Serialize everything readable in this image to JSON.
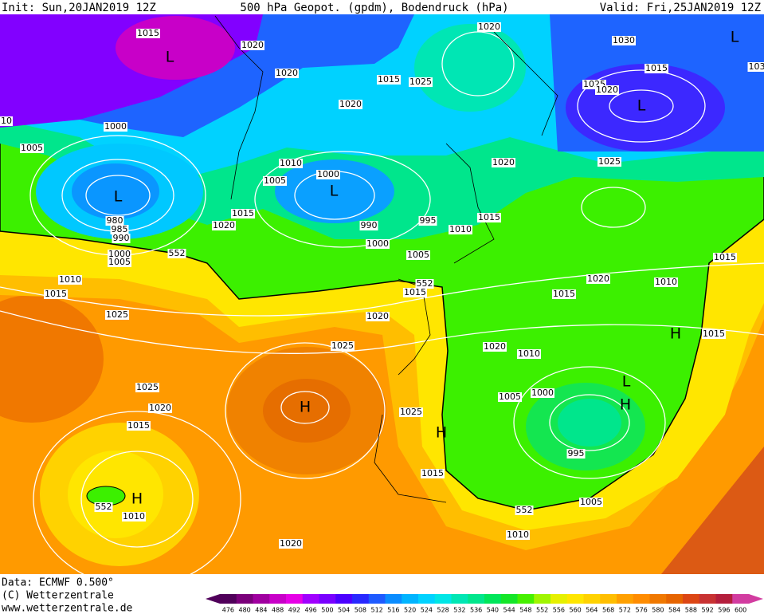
{
  "header": {
    "init": "Init: Sun,20JAN2019 12Z",
    "title": "500 hPa Geopot. (gpdm), Bodendruck (hPa)",
    "valid": "Valid: Fri,25JAN2019 12Z"
  },
  "footer": {
    "data": "Data: ECMWF  0.500°",
    "copyright": "(C) Wetterzentrale",
    "url": "www.wetterzentrale.de"
  },
  "colorbar": {
    "ticks": [
      476,
      480,
      484,
      488,
      492,
      496,
      500,
      504,
      508,
      512,
      516,
      520,
      524,
      528,
      532,
      536,
      540,
      544,
      548,
      552,
      556,
      560,
      564,
      568,
      572,
      576,
      580,
      584,
      588,
      592,
      596,
      600
    ],
    "colors": [
      "#50005a",
      "#7a007a",
      "#a000a0",
      "#c800c8",
      "#e600e6",
      "#a000ff",
      "#7800ff",
      "#4b00ff",
      "#2828ff",
      "#1e5aff",
      "#0a8cff",
      "#00b4ff",
      "#00d2ff",
      "#00e6e6",
      "#00e6b4",
      "#00e68c",
      "#00e65a",
      "#14e628",
      "#46f000",
      "#a0f500",
      "#e6f000",
      "#ffe600",
      "#ffd200",
      "#ffbe00",
      "#ffa000",
      "#ff8c00",
      "#f07800",
      "#e66400",
      "#dc4614",
      "#c83232",
      "#b41e3c",
      "#d23ca0"
    ]
  },
  "isobar_labels": [
    1015,
    1020,
    1020,
    1020,
    1015,
    1025,
    1020,
    1030,
    1015,
    1025,
    1020,
    1000,
    1005,
    1010,
    1005,
    1000,
    990,
    995,
    1020,
    1025,
    1015,
    1010,
    1015,
    1020,
    980,
    985,
    990,
    1000,
    1005,
    552,
    1000,
    1005,
    1010,
    1015,
    552,
    1015,
    1020,
    1010,
    1015,
    1015,
    1025,
    1020,
    1025,
    1015,
    1020,
    1010,
    1025,
    1005,
    1000,
    1020,
    1025,
    1015,
    995,
    1015,
    552,
    1005,
    1010,
    1010,
    552,
    1020,
    10,
    103
  ],
  "pressure_centers": [
    "L",
    "L",
    "L",
    "L",
    "L",
    "H",
    "H",
    "L",
    "H",
    "H",
    "H"
  ]
}
